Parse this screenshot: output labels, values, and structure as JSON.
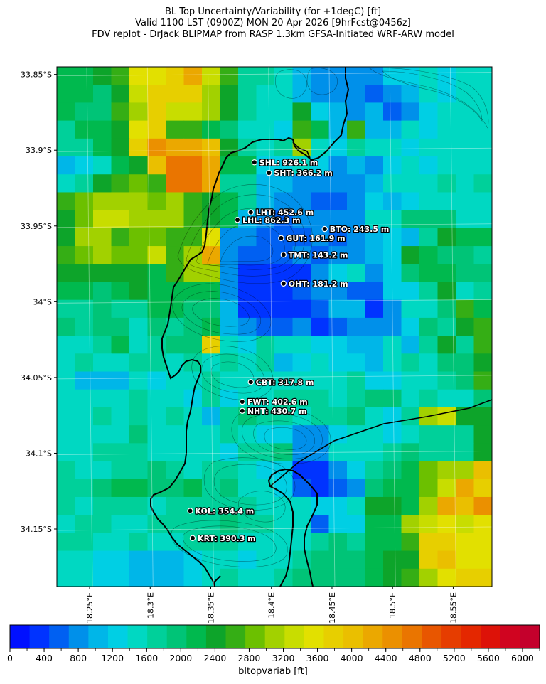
{
  "title": {
    "line1": "BL Top Uncertainty/Variability (for +1degC) [ft]",
    "line2": "Valid 1100 LST (0900Z) MON 20 Apr 2026 [9hrFcst@0456z]",
    "line3": "FDV replot - DrJack BLIPMAP from RASP 1.3km GFSA-Initiated WRF-ARW model"
  },
  "map": {
    "lat_ticks": [
      {
        "label": "33.85°S",
        "value": -33.85
      },
      {
        "label": "33.9°S",
        "value": -33.9
      },
      {
        "label": "33.95°S",
        "value": -33.95
      },
      {
        "label": "34°S",
        "value": -34.0
      },
      {
        "label": "34.05°S",
        "value": -34.05
      },
      {
        "label": "34.1°S",
        "value": -34.1
      },
      {
        "label": "34.15°S",
        "value": -34.15
      }
    ],
    "lon_ticks": [
      {
        "label": "18.25°E",
        "value": 18.25
      },
      {
        "label": "18.3°E",
        "value": 18.3
      },
      {
        "label": "18.35°E",
        "value": 18.35
      },
      {
        "label": "18.4°E",
        "value": 18.4
      },
      {
        "label": "18.45°E",
        "value": 18.45
      },
      {
        "label": "18.5°E",
        "value": 18.5
      },
      {
        "label": "18.55°E",
        "value": 18.55
      }
    ],
    "sites": [
      {
        "code": "SHL",
        "label": "SHL: 926.1 m",
        "lon": 18.386,
        "lat": -33.908
      },
      {
        "code": "SHT",
        "label": "SHT: 366.2 m",
        "lon": 18.398,
        "lat": -33.915
      },
      {
        "code": "LHT",
        "label": "LHT: 452.6 m",
        "lon": 18.383,
        "lat": -33.941
      },
      {
        "code": "LHL",
        "label": "LHL: 862.3 m",
        "lon": 18.372,
        "lat": -33.946
      },
      {
        "code": "BTO",
        "label": "BTO: 243.5 m",
        "lon": 18.444,
        "lat": -33.952
      },
      {
        "code": "GUT",
        "label": "GUT: 161.9 m",
        "lon": 18.408,
        "lat": -33.958
      },
      {
        "code": "TMT",
        "label": "TMT: 143.2 m",
        "lon": 18.41,
        "lat": -33.969
      },
      {
        "code": "OHT",
        "label": "OHT: 181.2 m",
        "lon": 18.41,
        "lat": -33.988
      },
      {
        "code": "CBT",
        "label": "CBT: 317.8 m",
        "lon": 18.383,
        "lat": -34.053
      },
      {
        "code": "FWT",
        "label": "FWT: 402.6 m",
        "lon": 18.376,
        "lat": -34.066
      },
      {
        "code": "NHT",
        "label": "NHT: 430.7 m",
        "lon": 18.376,
        "lat": -34.072
      },
      {
        "code": "KOL",
        "label": "KOL: 354.4 m",
        "lon": 18.333,
        "lat": -34.138
      },
      {
        "code": "KRT",
        "label": "KRT: 390.3 m",
        "lon": 18.335,
        "lat": -34.156
      }
    ]
  },
  "colorbar": {
    "label": "bltopvariab [ft]",
    "min": 0,
    "max": 6200,
    "step": 200,
    "tick_labels": [
      "0",
      "400",
      "800",
      "1200",
      "1600",
      "2000",
      "2400",
      "2800",
      "3200",
      "3600",
      "4000",
      "4400",
      "4800",
      "5200",
      "5600",
      "6000"
    ],
    "colors": [
      "#0010ff",
      "#0033ff",
      "#0060f2",
      "#0090ea",
      "#00b6e8",
      "#00cfe4",
      "#00d8c2",
      "#00d09a",
      "#00c477",
      "#00b94e",
      "#0da42a",
      "#35ae15",
      "#6cc000",
      "#a2d100",
      "#c8dd00",
      "#e2e000",
      "#e7cf00",
      "#eabf00",
      "#eba800",
      "#eb9000",
      "#ea7500",
      "#e85600",
      "#e63d00",
      "#e42700",
      "#dd1208",
      "#d00420",
      "#c4002c"
    ]
  },
  "chart_data": {
    "type": "heatmap",
    "title": "BL Top Uncertainty/Variability (for +1degC) [ft]",
    "xlabel": "",
    "ylabel": "",
    "colorbar_label": "bltopvariab [ft]",
    "value_range": [
      0,
      6200
    ],
    "note_cols": "columns span 18.223°E to 18.582°E (24 cols), rows span 33.845°S to 34.188°S (29 rows); values in ft",
    "cells": [
      [
        2200,
        2200,
        2500,
        2700,
        3600,
        3600,
        3800,
        4200,
        3400,
        2600,
        1800,
        1700,
        1400,
        1000,
        900,
        900,
        700,
        700,
        1200,
        1300,
        1400,
        1300,
        1500,
        1500
      ],
      [
        2200,
        2200,
        2000,
        2400,
        3400,
        3700,
        3800,
        3900,
        3200,
        2500,
        1800,
        1600,
        1400,
        1100,
        800,
        900,
        700,
        600,
        700,
        1100,
        1400,
        1300,
        1500,
        1500
      ],
      [
        2200,
        2000,
        1900,
        2600,
        3200,
        3700,
        3300,
        3400,
        3100,
        2500,
        1700,
        1600,
        1600,
        2500,
        1200,
        1000,
        900,
        1000,
        500,
        800,
        1200,
        1400,
        1600,
        1600
      ],
      [
        1800,
        2200,
        2200,
        2500,
        3600,
        3700,
        2600,
        2600,
        2100,
        2000,
        1600,
        1600,
        1300,
        2600,
        2200,
        1100,
        2600,
        1100,
        1000,
        1500,
        1300,
        1600,
        1600,
        1400
      ],
      [
        1700,
        1700,
        2100,
        2400,
        3800,
        4400,
        4300,
        4300,
        4000,
        2300,
        1700,
        1400,
        1800,
        3100,
        1400,
        1300,
        1700,
        1400,
        1600,
        1300,
        1400,
        1400,
        1500,
        1600
      ],
      [
        1000,
        1200,
        1600,
        2100,
        2400,
        4100,
        4600,
        4700,
        4200,
        2200,
        2100,
        1200,
        1300,
        1500,
        1200,
        700,
        1100,
        800,
        1200,
        1500,
        1300,
        1500,
        1500,
        1600
      ],
      [
        1600,
        1800,
        2500,
        2600,
        2900,
        2600,
        4800,
        4800,
        4300,
        1800,
        1700,
        1100,
        1000,
        700,
        700,
        700,
        900,
        1000,
        1500,
        1600,
        1400,
        1700,
        1600,
        1800
      ],
      [
        2600,
        2800,
        3100,
        3200,
        3000,
        2800,
        3200,
        2600,
        2400,
        2200,
        1800,
        1000,
        700,
        900,
        600,
        500,
        900,
        1200,
        1100,
        1300,
        1400,
        1500,
        1500,
        1500
      ],
      [
        2300,
        2800,
        3300,
        3300,
        3200,
        3200,
        3000,
        2700,
        2300,
        2100,
        1100,
        800,
        600,
        700,
        800,
        700,
        900,
        1400,
        1400,
        2000,
        1900,
        2000,
        1500,
        1500
      ],
      [
        2500,
        3000,
        3000,
        2700,
        2800,
        2900,
        2600,
        2600,
        3500,
        800,
        700,
        600,
        600,
        600,
        700,
        600,
        800,
        1000,
        1200,
        1100,
        1800,
        2500,
        2100,
        2100
      ],
      [
        2600,
        2800,
        3000,
        2900,
        2800,
        3300,
        2700,
        3000,
        4300,
        800,
        600,
        500,
        500,
        700,
        600,
        900,
        800,
        1000,
        1300,
        2400,
        2200,
        2000,
        2000,
        1800
      ],
      [
        2300,
        2400,
        2300,
        2400,
        2300,
        2200,
        2600,
        3000,
        3100,
        900,
        400,
        400,
        400,
        400,
        800,
        1200,
        1400,
        900,
        1300,
        2000,
        2100,
        2200,
        2000,
        2000
      ],
      [
        2200,
        2200,
        1900,
        2100,
        2300,
        2200,
        2200,
        2100,
        2200,
        800,
        400,
        400,
        400,
        500,
        800,
        700,
        500,
        500,
        1200,
        1300,
        1700,
        2500,
        1600,
        1700
      ],
      [
        1700,
        1800,
        1900,
        1800,
        1800,
        2200,
        2200,
        2000,
        2000,
        1100,
        400,
        400,
        400,
        400,
        500,
        1000,
        1000,
        400,
        900,
        1400,
        1600,
        2000,
        2600,
        2100
      ],
      [
        1900,
        1800,
        1900,
        1900,
        1600,
        1900,
        1800,
        2000,
        2200,
        1100,
        700,
        600,
        500,
        800,
        400,
        600,
        800,
        900,
        900,
        1300,
        2000,
        1800,
        2300,
        2700
      ],
      [
        1500,
        1400,
        1800,
        2200,
        1500,
        1800,
        1900,
        2000,
        3800,
        1500,
        1300,
        1800,
        1600,
        1600,
        1300,
        1300,
        1000,
        1000,
        1400,
        1100,
        1700,
        2300,
        1700,
        2600
      ],
      [
        1500,
        1800,
        1500,
        1600,
        1700,
        1800,
        1400,
        1700,
        1600,
        1700,
        1500,
        1700,
        1100,
        1200,
        1600,
        1300,
        1200,
        1100,
        1400,
        1700,
        1600,
        2000,
        2000,
        2400
      ],
      [
        1400,
        1100,
        1100,
        1100,
        1500,
        1200,
        1400,
        1400,
        1800,
        1600,
        1600,
        1500,
        1600,
        1500,
        1500,
        1600,
        1700,
        1200,
        1300,
        1600,
        1600,
        1700,
        1900,
        2600
      ],
      [
        1600,
        1500,
        1400,
        1600,
        1700,
        1400,
        1400,
        1300,
        1700,
        1300,
        1500,
        1600,
        1700,
        1800,
        1800,
        1500,
        1700,
        2000,
        1900,
        1600,
        1700,
        1500,
        1500,
        2000
      ],
      [
        1600,
        1600,
        1700,
        1500,
        1700,
        1600,
        1700,
        1600,
        1100,
        1800,
        1900,
        1800,
        1700,
        1500,
        1700,
        1800,
        2000,
        1500,
        1200,
        1800,
        3100,
        3400,
        2500,
        2400
      ],
      [
        1500,
        1600,
        1500,
        1600,
        1900,
        1500,
        1600,
        1500,
        1500,
        1700,
        1600,
        1200,
        1200,
        900,
        900,
        1200,
        1400,
        1600,
        1200,
        1500,
        1700,
        1700,
        1800,
        2300
      ],
      [
        1400,
        1600,
        1800,
        1800,
        1700,
        1400,
        1600,
        1500,
        1500,
        1300,
        1800,
        1700,
        2000,
        900,
        800,
        1400,
        1400,
        1600,
        1800,
        1900,
        1700,
        1800,
        1800,
        2300
      ],
      [
        1800,
        1600,
        1600,
        1700,
        1800,
        1900,
        1800,
        1400,
        1700,
        1700,
        1600,
        1300,
        1200,
        400,
        300,
        700,
        1200,
        1700,
        1900,
        2100,
        2800,
        3200,
        3200,
        4000
      ],
      [
        1800,
        1700,
        2000,
        2100,
        2100,
        2000,
        1900,
        2200,
        1800,
        2000,
        1600,
        1400,
        1200,
        500,
        300,
        500,
        900,
        1900,
        2200,
        2200,
        2900,
        3300,
        4300,
        3900
      ],
      [
        1700,
        1600,
        1700,
        1800,
        1800,
        1600,
        1700,
        1700,
        1800,
        1700,
        1700,
        1500,
        1400,
        1600,
        1300,
        1200,
        1500,
        2300,
        2500,
        2100,
        3200,
        4300,
        4100,
        4400
      ],
      [
        1500,
        1700,
        1700,
        1600,
        1500,
        1800,
        1700,
        1800,
        1800,
        1900,
        1800,
        1700,
        1600,
        1400,
        500,
        1300,
        1300,
        2100,
        2100,
        3200,
        3400,
        3500,
        3400,
        3500
      ],
      [
        1800,
        1700,
        1600,
        1600,
        1800,
        1500,
        1600,
        1700,
        1800,
        1800,
        1500,
        1400,
        1600,
        1500,
        1700,
        2000,
        1800,
        2100,
        2200,
        2600,
        3900,
        3700,
        3600,
        3600
      ],
      [
        1600,
        1500,
        1300,
        1200,
        1100,
        1000,
        1000,
        1200,
        1500,
        1600,
        1200,
        1400,
        1600,
        1800,
        2000,
        1900,
        2000,
        2200,
        2300,
        2500,
        3900,
        4100,
        3600,
        3600
      ],
      [
        1500,
        1400,
        1300,
        1300,
        1100,
        1000,
        1100,
        1200,
        1600,
        1700,
        1400,
        1500,
        1700,
        2000,
        1900,
        2000,
        2000,
        2200,
        2400,
        2600,
        3200,
        3500,
        3700,
        3800
      ]
    ]
  }
}
